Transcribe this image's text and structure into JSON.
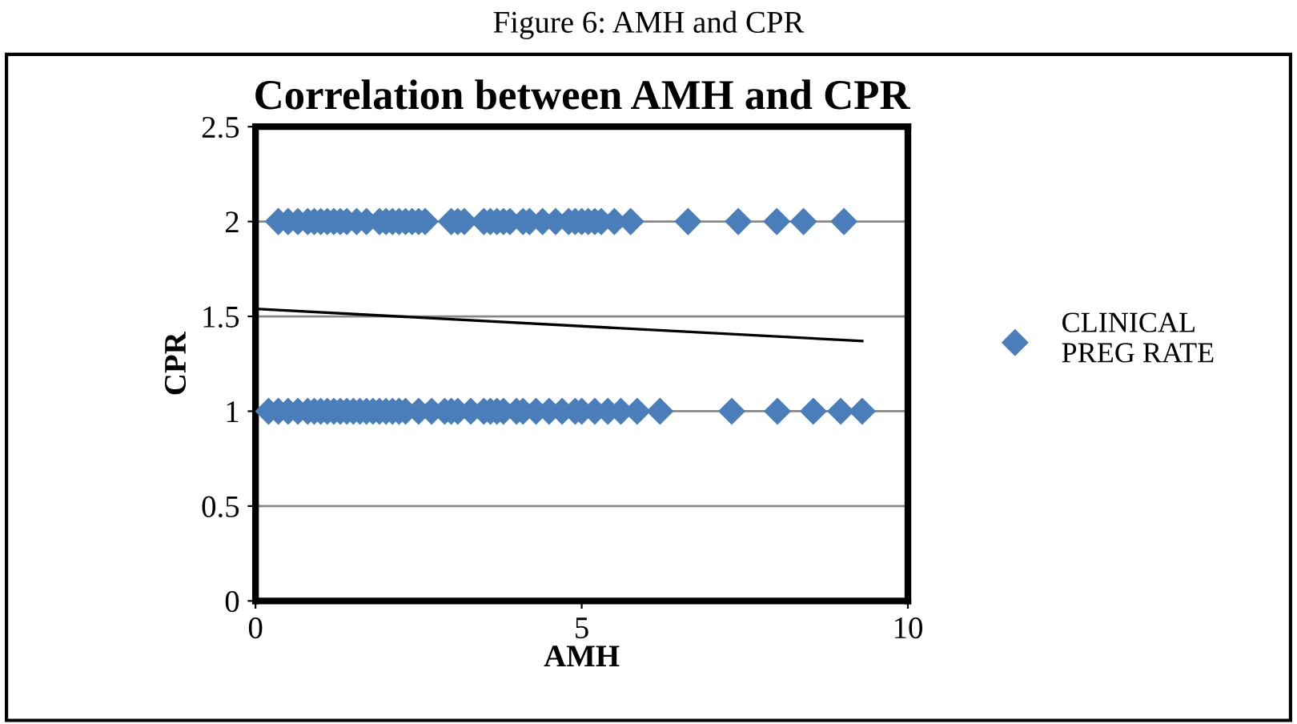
{
  "chart_data": {
    "type": "scatter",
    "title": "Correlation between AMH and CPR",
    "xlabel": "AMH",
    "ylabel": "CPR",
    "annotations": [
      "Figure 6: AMH and CPR"
    ],
    "series": [
      {
        "name": "CLINICAL PREG RATE",
        "color": "#4a7ebb",
        "marker": "diamond",
        "x": [
          0.35,
          0.5,
          0.65,
          0.8,
          0.9,
          1.0,
          1.1,
          1.2,
          1.3,
          1.4,
          1.55,
          1.7,
          1.9,
          2.0,
          2.1,
          2.2,
          2.3,
          2.4,
          2.5,
          2.6,
          3.0,
          3.1,
          3.2,
          3.5,
          3.6,
          3.7,
          3.8,
          3.9,
          4.1,
          4.2,
          4.4,
          4.6,
          4.8,
          4.9,
          5.0,
          5.1,
          5.2,
          5.3,
          5.5,
          5.75,
          6.63,
          7.4,
          7.99,
          8.4,
          9.02,
          0.2,
          0.35,
          0.5,
          0.65,
          0.8,
          0.9,
          1.0,
          1.1,
          1.2,
          1.3,
          1.4,
          1.5,
          1.6,
          1.7,
          1.8,
          1.9,
          2.0,
          2.1,
          2.2,
          2.3,
          2.5,
          2.7,
          2.9,
          3.0,
          3.1,
          3.3,
          3.5,
          3.6,
          3.7,
          3.8,
          4.0,
          4.1,
          4.3,
          4.5,
          4.7,
          4.9,
          5.0,
          5.2,
          5.4,
          5.6,
          5.85,
          6.2,
          7.3,
          8.0,
          8.55,
          8.97,
          9.3
        ],
        "values": [
          2,
          2,
          2,
          2,
          2,
          2,
          2,
          2,
          2,
          2,
          2,
          2,
          2,
          2,
          2,
          2,
          2,
          2,
          2,
          2,
          2,
          2,
          2,
          2,
          2,
          2,
          2,
          2,
          2,
          2,
          2,
          2,
          2,
          2,
          2,
          2,
          2,
          2,
          2,
          2,
          2,
          2,
          2,
          2,
          2,
          1,
          1,
          1,
          1,
          1,
          1,
          1,
          1,
          1,
          1,
          1,
          1,
          1,
          1,
          1,
          1,
          1,
          1,
          1,
          1,
          1,
          1,
          1,
          1,
          1,
          1,
          1,
          1,
          1,
          1,
          1,
          1,
          1,
          1,
          1,
          1,
          1,
          1,
          1,
          1,
          1,
          1,
          1,
          1,
          1,
          1,
          1
        ]
      },
      {
        "color": "#000000",
        "type": "line",
        "x": [
          0,
          9.3
        ],
        "values": [
          1.54,
          1.37
        ]
      }
    ],
    "xlim": [
      0,
      10
    ],
    "xticks": [
      0,
      5,
      10
    ],
    "ylim": [
      0,
      2.5
    ],
    "yticks": [
      0,
      0.5,
      1,
      1.5,
      2,
      2.5
    ],
    "grid": "y",
    "legend": "right"
  }
}
